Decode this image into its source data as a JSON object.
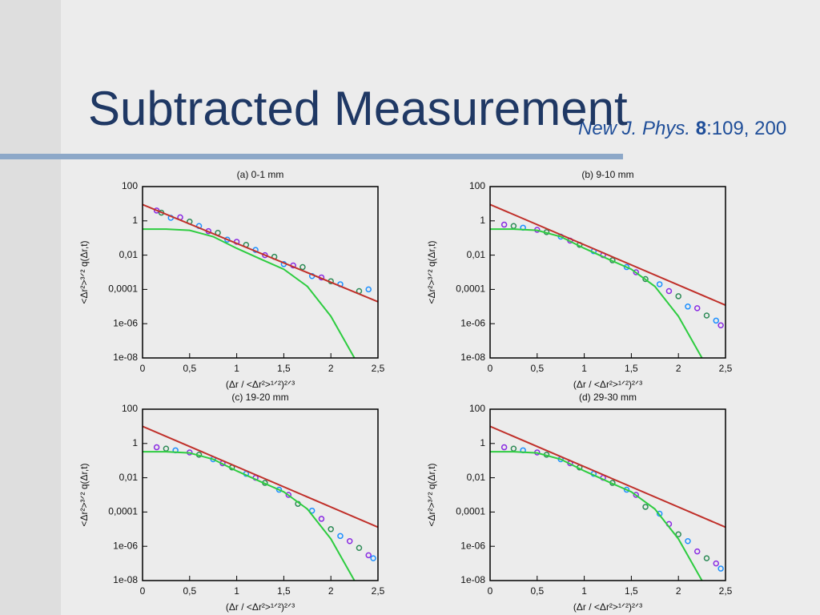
{
  "slide": {
    "title": "Subtracted Measurement",
    "citation": [
      "New J. Phys. ",
      "8",
      ":109, 200"
    ]
  },
  "chart_data": [
    {
      "type": "scatter",
      "title": "(a) 0-1 mm",
      "xlabel": "(Δr / <Δr²>¹ᐟ²)²ᐟ³",
      "ylabel": "<Δr²>³ᐟ² q(Δr,t)",
      "log_y": true,
      "xlim": [
        0,
        2.5
      ],
      "xticks": [
        0,
        {
          "value": 0.5,
          "label": "0,5"
        },
        1,
        {
          "value": 1.5,
          "label": "1,5"
        },
        2,
        {
          "value": 2.5,
          "label": "2,5"
        }
      ],
      "ylim": [
        1e-08,
        100
      ],
      "yticks": [
        100,
        1,
        {
          "value": 0.01,
          "label": "0,01"
        },
        {
          "value": 0.0001,
          "label": "0,0001"
        },
        {
          "value": 1e-06,
          "label": "1e-06"
        },
        {
          "value": 1e-08,
          "label": "1e-08"
        }
      ],
      "series": [
        {
          "style": "points",
          "color": "#8a2be2",
          "x": [
            0.15,
            0.4,
            0.7,
            1.0,
            1.3,
            1.6,
            1.9
          ],
          "values": [
            4,
            1.6,
            0.25,
            0.06,
            0.01,
            0.0025,
            0.0005
          ]
        },
        {
          "style": "points",
          "color": "#2e8b57",
          "x": [
            0.2,
            0.5,
            0.8,
            1.1,
            1.4,
            1.7,
            2.0,
            2.3
          ],
          "values": [
            3,
            0.9,
            0.2,
            0.04,
            0.008,
            0.002,
            0.0003,
            8e-05
          ]
        },
        {
          "style": "points",
          "color": "#1e90ff",
          "x": [
            0.3,
            0.6,
            0.9,
            1.2,
            1.5,
            1.8,
            2.1,
            2.4
          ],
          "values": [
            1.5,
            0.5,
            0.08,
            0.02,
            0.003,
            0.0006,
            0.0002,
            0.0001
          ]
        },
        {
          "style": "line",
          "color": "#c0302a",
          "x": [
            0,
            2.5
          ],
          "values": [
            9,
            1.9e-05
          ]
        },
        {
          "style": "line",
          "color": "#2ecc40",
          "x": [
            0,
            0.25,
            0.5,
            0.75,
            1,
            1.25,
            1.5,
            1.75,
            2,
            2.25
          ],
          "values": [
            0.33,
            0.33,
            0.28,
            0.12,
            0.025,
            0.006,
            0.0015,
            0.00015,
            2.7e-06,
            1e-08
          ]
        }
      ]
    },
    {
      "type": "scatter",
      "title": "(b) 9-10 mm",
      "xlabel": "(Δr / <Δr²>¹ᐟ²)²ᐟ³",
      "ylabel": "<Δr²>³ᐟ² q(Δr,t)",
      "log_y": true,
      "xlim": [
        0,
        2.5
      ],
      "xticks": [
        0,
        {
          "value": 0.5,
          "label": "0,5"
        },
        1,
        {
          "value": 1.5,
          "label": "1,5"
        },
        2,
        {
          "value": 2.5,
          "label": "2,5"
        }
      ],
      "ylim": [
        1e-08,
        100
      ],
      "yticks": [
        100,
        1,
        {
          "value": 0.01,
          "label": "0,01"
        },
        {
          "value": 0.0001,
          "label": "0,0001"
        },
        {
          "value": 1e-06,
          "label": "1e-06"
        },
        {
          "value": 1e-08,
          "label": "1e-08"
        }
      ],
      "series": [
        {
          "style": "points",
          "color": "#8a2be2",
          "x": [
            0.15,
            0.5,
            0.85,
            1.2,
            1.55,
            1.9,
            2.2,
            2.45
          ],
          "values": [
            0.6,
            0.3,
            0.07,
            0.01,
            0.001,
            8e-05,
            8e-06,
            8e-07
          ]
        },
        {
          "style": "points",
          "color": "#2e8b57",
          "x": [
            0.25,
            0.6,
            0.95,
            1.3,
            1.65,
            2.0,
            2.3
          ],
          "values": [
            0.5,
            0.22,
            0.04,
            0.005,
            0.0004,
            4e-05,
            3e-06
          ]
        },
        {
          "style": "points",
          "color": "#1e90ff",
          "x": [
            0.35,
            0.75,
            1.1,
            1.45,
            1.8,
            2.1,
            2.4
          ],
          "values": [
            0.4,
            0.12,
            0.017,
            0.002,
            0.0002,
            1e-05,
            1.5e-06
          ]
        },
        {
          "style": "line",
          "color": "#c0302a",
          "x": [
            0,
            2.5
          ],
          "values": [
            9,
            1.2e-05
          ]
        },
        {
          "style": "line",
          "color": "#2ecc40",
          "x": [
            0,
            0.25,
            0.5,
            0.75,
            1,
            1.25,
            1.5,
            1.75,
            2,
            2.25
          ],
          "values": [
            0.33,
            0.33,
            0.28,
            0.12,
            0.025,
            0.006,
            0.0015,
            0.00015,
            2.7e-06,
            1e-08
          ]
        }
      ]
    },
    {
      "type": "scatter",
      "title": "(c) 19-20 mm",
      "xlabel": "(Δr / <Δr²>¹ᐟ²)²ᐟ³",
      "ylabel": "<Δr²>³ᐟ² q(Δr,t)",
      "log_y": true,
      "xlim": [
        0,
        2.5
      ],
      "xticks": [
        0,
        {
          "value": 0.5,
          "label": "0,5"
        },
        1,
        {
          "value": 1.5,
          "label": "1,5"
        },
        2,
        {
          "value": 2.5,
          "label": "2,5"
        }
      ],
      "ylim": [
        1e-08,
        100
      ],
      "yticks": [
        100,
        1,
        {
          "value": 0.01,
          "label": "0,01"
        },
        {
          "value": 0.0001,
          "label": "0,0001"
        },
        {
          "value": 1e-06,
          "label": "1e-06"
        },
        {
          "value": 1e-08,
          "label": "1e-08"
        }
      ],
      "series": [
        {
          "style": "points",
          "color": "#8a2be2",
          "x": [
            0.15,
            0.5,
            0.85,
            1.2,
            1.55,
            1.9,
            2.2,
            2.4
          ],
          "values": [
            0.6,
            0.3,
            0.07,
            0.01,
            0.001,
            4e-05,
            2e-06,
            3e-07
          ]
        },
        {
          "style": "points",
          "color": "#2e8b57",
          "x": [
            0.25,
            0.6,
            0.95,
            1.3,
            1.65,
            2.0,
            2.3
          ],
          "values": [
            0.5,
            0.22,
            0.04,
            0.005,
            0.0003,
            1e-05,
            8e-07
          ]
        },
        {
          "style": "points",
          "color": "#1e90ff",
          "x": [
            0.35,
            0.75,
            1.1,
            1.45,
            1.8,
            2.1,
            2.45
          ],
          "values": [
            0.4,
            0.12,
            0.017,
            0.002,
            0.00012,
            4e-06,
            2e-07
          ]
        },
        {
          "style": "line",
          "color": "#c0302a",
          "x": [
            0,
            2.5
          ],
          "values": [
            10,
            1.3e-05
          ]
        },
        {
          "style": "line",
          "color": "#2ecc40",
          "x": [
            0,
            0.25,
            0.5,
            0.75,
            1,
            1.25,
            1.5,
            1.75,
            2,
            2.25
          ],
          "values": [
            0.33,
            0.33,
            0.28,
            0.12,
            0.025,
            0.006,
            0.0015,
            0.00015,
            2.7e-06,
            1e-08
          ]
        }
      ]
    },
    {
      "type": "scatter",
      "title": "(d) 29-30 mm",
      "xlabel": "(Δr / <Δr²>¹ᐟ²)²ᐟ³",
      "ylabel": "<Δr²>³ᐟ² q(Δr,t)",
      "log_y": true,
      "xlim": [
        0,
        2.5
      ],
      "xticks": [
        0,
        {
          "value": 0.5,
          "label": "0,5"
        },
        1,
        {
          "value": 1.5,
          "label": "1,5"
        },
        2,
        {
          "value": 2.5,
          "label": "2,5"
        }
      ],
      "ylim": [
        1e-08,
        100
      ],
      "yticks": [
        100,
        1,
        {
          "value": 0.01,
          "label": "0,01"
        },
        {
          "value": 0.0001,
          "label": "0,0001"
        },
        {
          "value": 1e-06,
          "label": "1e-06"
        },
        {
          "value": 1e-08,
          "label": "1e-08"
        }
      ],
      "series": [
        {
          "style": "points",
          "color": "#8a2be2",
          "x": [
            0.15,
            0.5,
            0.85,
            1.2,
            1.55,
            1.9,
            2.2,
            2.4
          ],
          "values": [
            0.6,
            0.3,
            0.07,
            0.01,
            0.001,
            2e-05,
            5e-07,
            1e-07
          ]
        },
        {
          "style": "points",
          "color": "#2e8b57",
          "x": [
            0.25,
            0.6,
            0.95,
            1.3,
            1.65,
            2.0,
            2.3
          ],
          "values": [
            0.5,
            0.22,
            0.04,
            0.005,
            0.0002,
            5e-06,
            2e-07
          ]
        },
        {
          "style": "points",
          "color": "#1e90ff",
          "x": [
            0.35,
            0.75,
            1.1,
            1.45,
            1.8,
            2.1,
            2.45
          ],
          "values": [
            0.4,
            0.12,
            0.017,
            0.002,
            8e-05,
            2e-06,
            5e-08
          ]
        },
        {
          "style": "line",
          "color": "#c0302a",
          "x": [
            0,
            2.5
          ],
          "values": [
            10,
            1.3e-05
          ]
        },
        {
          "style": "line",
          "color": "#2ecc40",
          "x": [
            0,
            0.25,
            0.5,
            0.75,
            1,
            1.25,
            1.5,
            1.75,
            2,
            2.25
          ],
          "values": [
            0.33,
            0.33,
            0.28,
            0.12,
            0.025,
            0.006,
            0.0015,
            0.00015,
            2.7e-06,
            1e-08
          ]
        }
      ]
    }
  ]
}
